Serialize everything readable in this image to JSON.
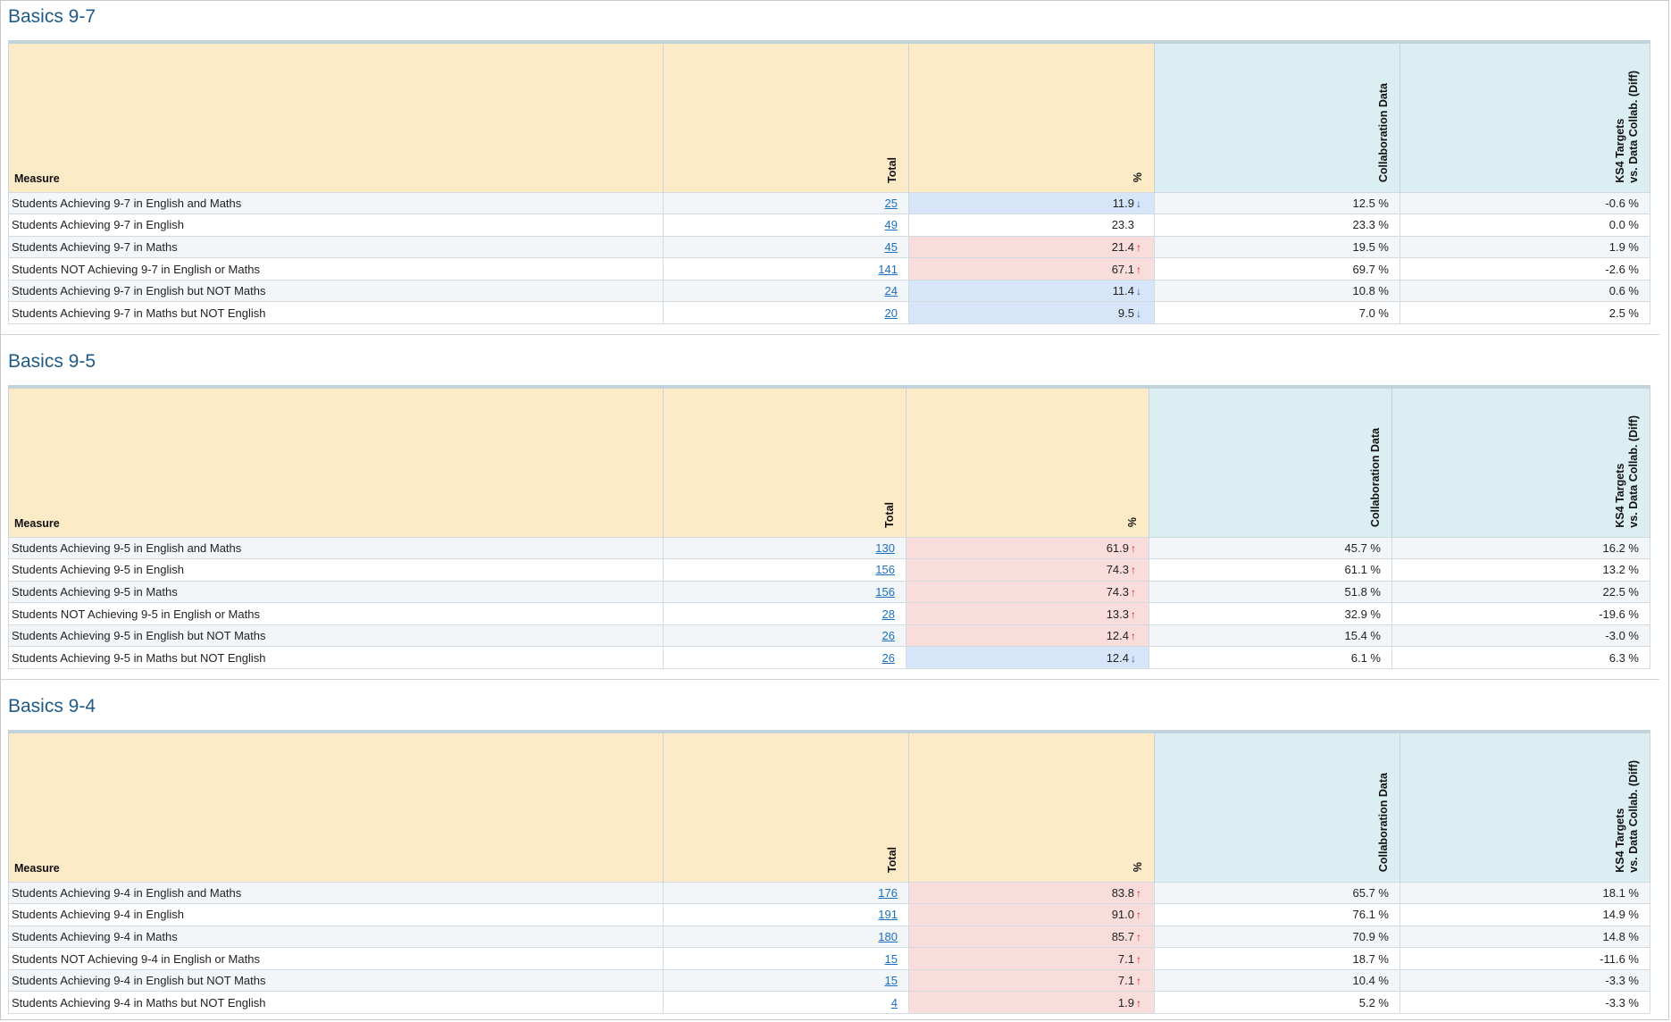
{
  "headers": {
    "measure": "Measure",
    "total": "Total",
    "pct": "%",
    "collab": "Collaboration Data",
    "diff_line1": "KS4 Targets",
    "diff_line2": "vs. Data Collab. (Diff)"
  },
  "colors": {
    "header_warm": "#fdebc8",
    "header_cool": "#dbeff2",
    "up_cell": "#f9dcdc",
    "down_cell": "#d6e5f8",
    "arrow_up": "#d21f1f",
    "arrow_down": "#1d5fb4",
    "title": "#1f5a86",
    "link": "#1b6fc0"
  },
  "sections": [
    {
      "title": "Basics 9-7",
      "rows": [
        {
          "measure": "Students Achieving 9-7 in English and Maths",
          "total": "25",
          "pct": "11.9",
          "trend": "down",
          "collab": "12.5 %",
          "diff": "-0.6 %"
        },
        {
          "measure": "Students Achieving 9-7 in English",
          "total": "49",
          "pct": "23.3",
          "trend": "none",
          "collab": "23.3 %",
          "diff": "0.0 %"
        },
        {
          "measure": "Students Achieving 9-7 in Maths",
          "total": "45",
          "pct": "21.4",
          "trend": "up",
          "collab": "19.5 %",
          "diff": "1.9 %"
        },
        {
          "measure": "Students NOT Achieving 9-7 in English or Maths",
          "total": "141",
          "pct": "67.1",
          "trend": "up",
          "collab": "69.7 %",
          "diff": "-2.6 %"
        },
        {
          "measure": "Students Achieving 9-7 in English but NOT Maths",
          "total": "24",
          "pct": "11.4",
          "trend": "down",
          "collab": "10.8 %",
          "diff": "0.6 %"
        },
        {
          "measure": "Students Achieving 9-7 in Maths but NOT English",
          "total": "20",
          "pct": "9.5",
          "trend": "down",
          "collab": "7.0 %",
          "diff": "2.5 %"
        }
      ]
    },
    {
      "title": "Basics 9-5",
      "rows": [
        {
          "measure": "Students Achieving 9-5 in English and Maths",
          "total": "130",
          "pct": "61.9",
          "trend": "up",
          "collab": "45.7 %",
          "diff": "16.2 %"
        },
        {
          "measure": "Students Achieving 9-5 in English",
          "total": "156",
          "pct": "74.3",
          "trend": "up",
          "collab": "61.1 %",
          "diff": "13.2 %"
        },
        {
          "measure": "Students Achieving 9-5 in Maths",
          "total": "156",
          "pct": "74.3",
          "trend": "up",
          "collab": "51.8 %",
          "diff": "22.5 %"
        },
        {
          "measure": "Students NOT Achieving 9-5 in English or Maths",
          "total": "28",
          "pct": "13.3",
          "trend": "up",
          "collab": "32.9 %",
          "diff": "-19.6 %"
        },
        {
          "measure": "Students Achieving 9-5 in English but NOT Maths",
          "total": "26",
          "pct": "12.4",
          "trend": "up",
          "collab": "15.4 %",
          "diff": "-3.0 %"
        },
        {
          "measure": "Students Achieving 9-5 in Maths but NOT English",
          "total": "26",
          "pct": "12.4",
          "trend": "down",
          "collab": "6.1 %",
          "diff": "6.3 %"
        }
      ]
    },
    {
      "title": "Basics 9-4",
      "rows": [
        {
          "measure": "Students Achieving 9-4 in English and Maths",
          "total": "176",
          "pct": "83.8",
          "trend": "up",
          "collab": "65.7 %",
          "diff": "18.1 %"
        },
        {
          "measure": "Students Achieving 9-4 in English",
          "total": "191",
          "pct": "91.0",
          "trend": "up",
          "collab": "76.1 %",
          "diff": "14.9 %"
        },
        {
          "measure": "Students Achieving 9-4 in Maths",
          "total": "180",
          "pct": "85.7",
          "trend": "up",
          "collab": "70.9 %",
          "diff": "14.8 %"
        },
        {
          "measure": "Students NOT Achieving 9-4 in English or Maths",
          "total": "15",
          "pct": "7.1",
          "trend": "up",
          "collab": "18.7 %",
          "diff": "-11.6 %"
        },
        {
          "measure": "Students Achieving 9-4 in English but NOT Maths",
          "total": "15",
          "pct": "7.1",
          "trend": "up",
          "collab": "10.4 %",
          "diff": "-3.3 %"
        },
        {
          "measure": "Students Achieving 9-4 in Maths but NOT English",
          "total": "4",
          "pct": "1.9",
          "trend": "up",
          "collab": "5.2 %",
          "diff": "-3.3 %"
        }
      ]
    }
  ]
}
